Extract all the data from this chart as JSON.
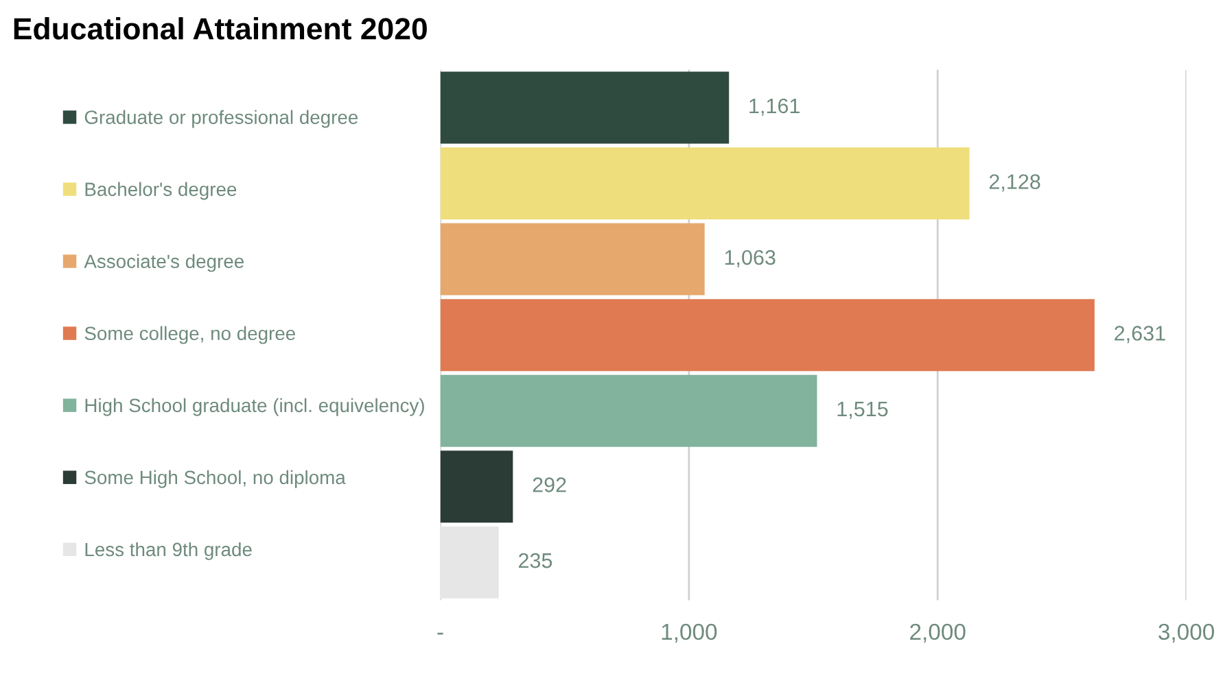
{
  "chart_data": {
    "type": "bar",
    "orientation": "horizontal",
    "title": "Educational Attainment 2020",
    "categories": [
      null,
      null,
      null,
      null,
      null,
      null,
      null
    ],
    "series": [
      {
        "name": "Graduate or professional degree",
        "color": "#2f4a3f",
        "values": [
          1161,
          null,
          null,
          null,
          null,
          null,
          null
        ],
        "value_labels": [
          "1,161",
          null,
          null,
          null,
          null,
          null,
          null
        ]
      },
      {
        "name": "Bachelor's degree",
        "color": "#efdf7c",
        "values": [
          null,
          2128,
          null,
          null,
          null,
          null,
          null
        ],
        "value_labels": [
          null,
          "2,128",
          null,
          null,
          null,
          null,
          null
        ]
      },
      {
        "name": "Associate's degree",
        "color": "#e6a86c",
        "values": [
          null,
          null,
          1063,
          null,
          null,
          null,
          null
        ],
        "value_labels": [
          null,
          null,
          "1,063",
          null,
          null,
          null,
          null
        ]
      },
      {
        "name": "Some college, no degree",
        "color": "#e07a52",
        "values": [
          null,
          null,
          null,
          2631,
          null,
          null,
          null
        ],
        "value_labels": [
          null,
          null,
          null,
          "2,631",
          null,
          null,
          null
        ]
      },
      {
        "name": "High School graduate (incl. equivelency)",
        "color": "#82b39c",
        "values": [
          null,
          null,
          null,
          null,
          1515,
          null,
          null
        ],
        "value_labels": [
          null,
          null,
          null,
          null,
          "1,515",
          null,
          null
        ]
      },
      {
        "name": "Some High School, no diploma",
        "color": "#2b3b35",
        "values": [
          null,
          null,
          null,
          null,
          null,
          292,
          null
        ],
        "value_labels": [
          null,
          null,
          null,
          null,
          null,
          "292",
          null
        ]
      },
      {
        "name": "Less than 9th grade",
        "color": "#e6e6e6",
        "values": [
          null,
          null,
          null,
          null,
          null,
          null,
          235
        ],
        "value_labels": [
          null,
          null,
          null,
          null,
          null,
          null,
          "235"
        ]
      }
    ],
    "xlim": [
      0,
      3000
    ],
    "xticks": [
      {
        "value": 0,
        "label": "-"
      },
      {
        "value": 1000,
        "label": "1,000"
      },
      {
        "value": 2000,
        "label": "2,000"
      },
      {
        "value": 3000,
        "label": "3,000"
      }
    ],
    "grid": "x",
    "legend": "left"
  }
}
